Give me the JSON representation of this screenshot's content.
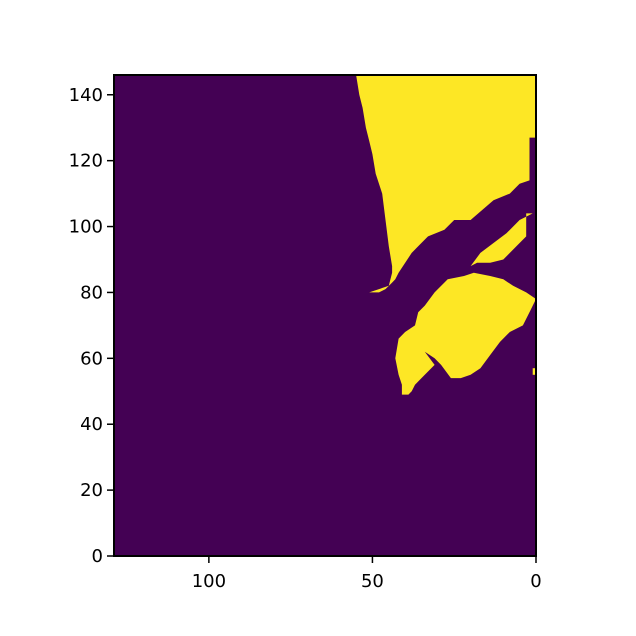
{
  "chart_data": {
    "type": "heatmap",
    "title": "",
    "xlabel": "",
    "ylabel": "",
    "x_inverted": true,
    "xlim": [
      129,
      0
    ],
    "ylim": [
      0,
      146
    ],
    "x_ticks": [
      100,
      50,
      0
    ],
    "x_tick_labels": [
      "100",
      "50",
      "0"
    ],
    "y_ticks": [
      0,
      20,
      40,
      60,
      80,
      100,
      120,
      140
    ],
    "y_tick_labels": [
      "0",
      "20",
      "40",
      "60",
      "80",
      "100",
      "120",
      "140"
    ],
    "grid": false,
    "colormap": "viridis",
    "value_colors": {
      "0": "#440154",
      "1": "#fde725"
    },
    "binary_mask_regions": [
      {
        "name": "upper-region",
        "value": 1,
        "outline_data_units": [
          [
            55,
            146
          ],
          [
            0,
            146
          ],
          [
            0,
            127
          ],
          [
            2,
            127
          ],
          [
            2,
            114
          ],
          [
            5,
            113
          ],
          [
            8,
            110
          ],
          [
            13,
            108
          ],
          [
            20,
            102
          ],
          [
            25,
            102
          ],
          [
            28,
            99
          ],
          [
            33,
            97
          ],
          [
            36,
            94
          ],
          [
            38,
            92
          ],
          [
            42,
            86
          ],
          [
            43,
            84
          ],
          [
            44,
            83
          ],
          [
            46,
            81
          ],
          [
            48,
            80
          ],
          [
            51,
            80
          ],
          [
            45,
            82
          ],
          [
            44,
            86
          ],
          [
            44,
            88
          ],
          [
            45,
            94
          ],
          [
            46,
            102
          ],
          [
            47,
            110
          ],
          [
            49,
            116
          ],
          [
            50,
            122
          ],
          [
            51,
            126
          ],
          [
            52,
            130
          ],
          [
            53,
            136
          ],
          [
            54,
            140
          ]
        ]
      },
      {
        "name": "middle-strip",
        "value": 1,
        "outline_data_units": [
          [
            1,
            104
          ],
          [
            3,
            104
          ],
          [
            3,
            97
          ],
          [
            6,
            94
          ],
          [
            10,
            90
          ],
          [
            14,
            89
          ],
          [
            18,
            89
          ],
          [
            20,
            88
          ],
          [
            17,
            92
          ],
          [
            13,
            95
          ],
          [
            9,
            98
          ],
          [
            5,
            102
          ]
        ]
      },
      {
        "name": "lower-region",
        "value": 1,
        "outline_data_units": [
          [
            0,
            78
          ],
          [
            2,
            74
          ],
          [
            4,
            70
          ],
          [
            8,
            68
          ],
          [
            11,
            65
          ],
          [
            14,
            61
          ],
          [
            17,
            57
          ],
          [
            20,
            55
          ],
          [
            23,
            54
          ],
          [
            26,
            54
          ],
          [
            29,
            58
          ],
          [
            31,
            60
          ],
          [
            34,
            62
          ],
          [
            31,
            58
          ],
          [
            34,
            55
          ],
          [
            37,
            52
          ],
          [
            38,
            50
          ],
          [
            39,
            49
          ],
          [
            41,
            49
          ],
          [
            41,
            52
          ],
          [
            42,
            55
          ],
          [
            43,
            60
          ],
          [
            42,
            66
          ],
          [
            40,
            68
          ],
          [
            37,
            70
          ],
          [
            36,
            74
          ],
          [
            34,
            76
          ],
          [
            31,
            80
          ],
          [
            27,
            84
          ],
          [
            22,
            85
          ],
          [
            19,
            86
          ],
          [
            14,
            85
          ],
          [
            10,
            84
          ],
          [
            7,
            82
          ],
          [
            3,
            80
          ]
        ]
      },
      {
        "name": "right-edge-fleck",
        "value": 1,
        "outline_data_units": [
          [
            0,
            57
          ],
          [
            1,
            57
          ],
          [
            1,
            55
          ],
          [
            0,
            55
          ]
        ]
      }
    ]
  }
}
